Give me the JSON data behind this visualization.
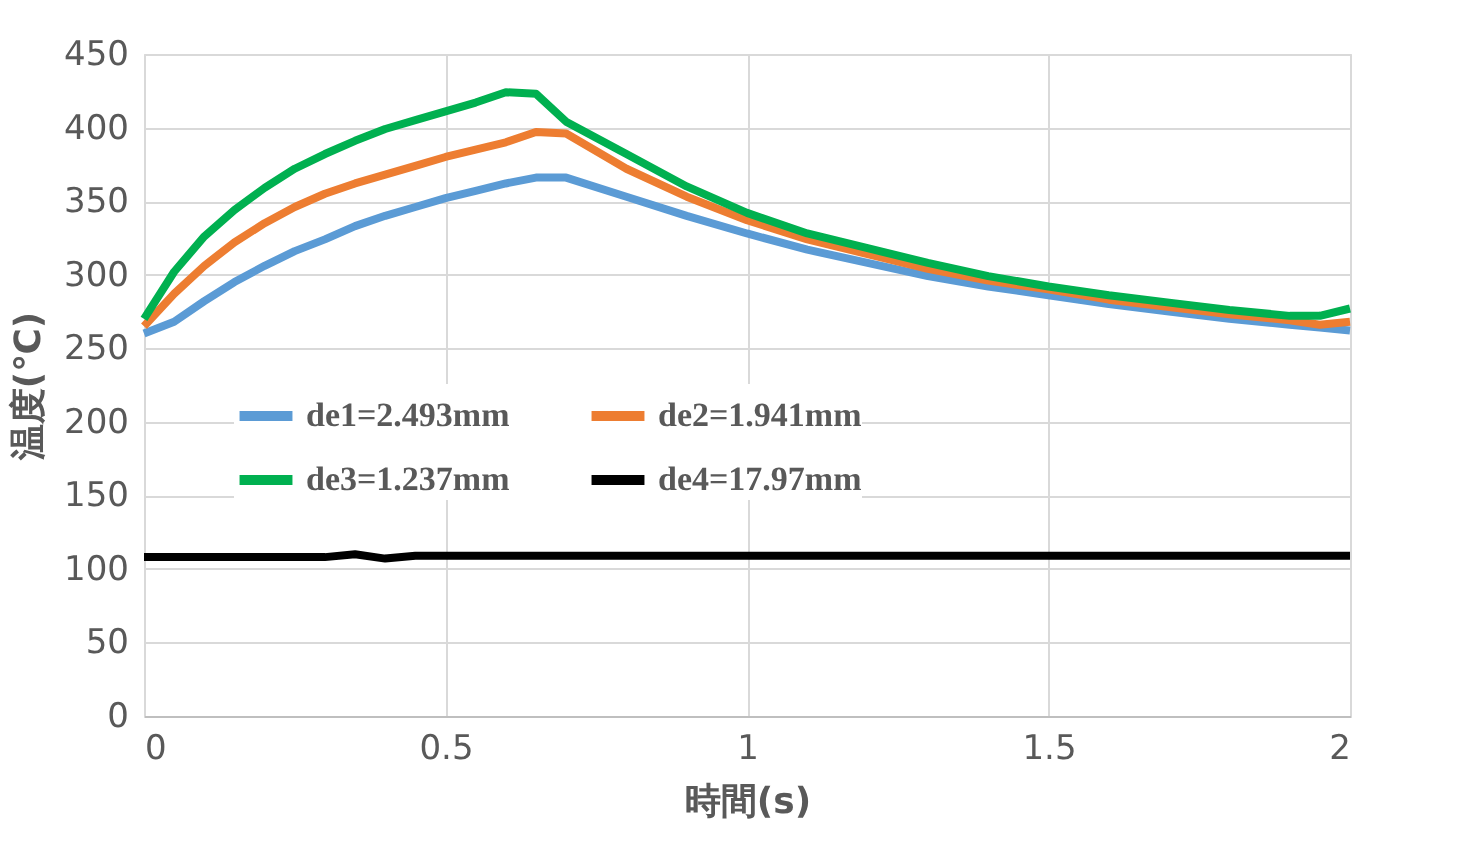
{
  "chart_data": {
    "type": "line",
    "xlabel": "時間(s)",
    "ylabel": "温度(℃)",
    "x": [
      0,
      0.05,
      0.1,
      0.15,
      0.2,
      0.25,
      0.3,
      0.35,
      0.4,
      0.45,
      0.5,
      0.55,
      0.6,
      0.65,
      0.7,
      0.8,
      0.9,
      1.0,
      1.1,
      1.2,
      1.3,
      1.4,
      1.5,
      1.6,
      1.7,
      1.8,
      1.9,
      1.95,
      2.0
    ],
    "series": [
      {
        "name": "de1=2.493mm",
        "color": "#5b9bd5",
        "values": [
          260,
          268,
          282,
          295,
          306,
          316,
          324,
          333,
          340,
          346,
          352,
          357,
          362,
          366,
          366,
          353,
          340,
          328,
          317,
          308,
          299,
          292,
          286,
          280,
          275,
          270,
          266,
          264,
          262
        ]
      },
      {
        "name": "de2=1.941mm",
        "color": "#ed7d31",
        "values": [
          265,
          287,
          306,
          322,
          335,
          346,
          355,
          362,
          368,
          374,
          380,
          385,
          390,
          397,
          396,
          372,
          353,
          337,
          324,
          314,
          304,
          296,
          290,
          283,
          278,
          273,
          269,
          266,
          268
        ]
      },
      {
        "name": "de3=1.237mm",
        "color": "#00b050",
        "values": [
          270,
          302,
          326,
          344,
          359,
          372,
          382,
          391,
          399,
          405,
          411,
          417,
          424,
          423,
          404,
          382,
          360,
          342,
          328,
          318,
          308,
          299,
          292,
          286,
          281,
          276,
          272,
          272,
          277
        ]
      },
      {
        "name": "de4=17.97mm",
        "color": "#000000",
        "values": [
          108,
          108,
          108,
          108,
          108,
          108,
          108,
          110,
          107,
          109,
          109,
          109,
          109,
          109,
          109,
          109,
          109,
          109,
          109,
          109,
          109,
          109,
          109,
          109,
          109,
          109,
          109,
          109,
          109
        ]
      }
    ],
    "xlim": [
      0,
      2
    ],
    "xticks": [
      0,
      0.5,
      1,
      1.5,
      2
    ],
    "ylim": [
      0,
      450
    ],
    "yticks": [
      0,
      50,
      100,
      150,
      200,
      250,
      300,
      350,
      400,
      450
    ],
    "grid": true,
    "legend": "left",
    "marker": "none",
    "line_style": "solid"
  }
}
